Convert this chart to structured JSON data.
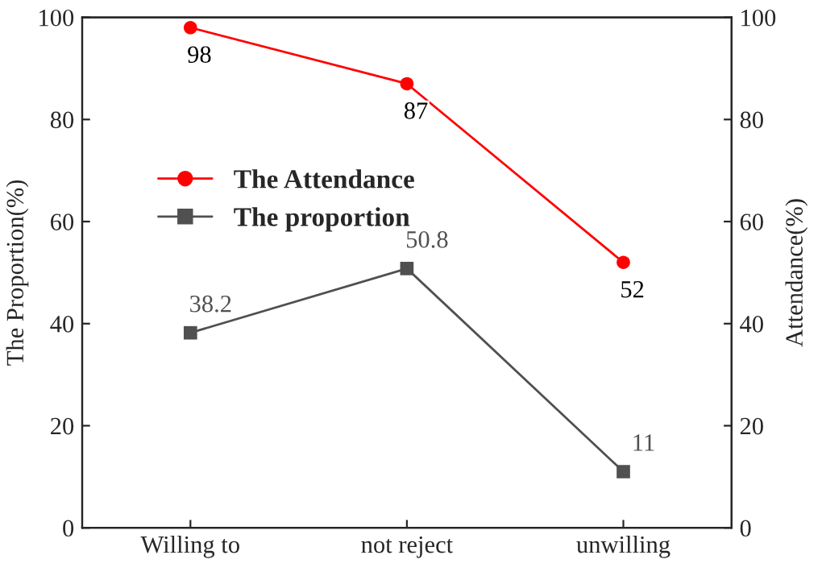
{
  "chart_data": {
    "type": "line",
    "ylabel": "The Proportion(%)",
    "y2label": "Attendance(%)",
    "categories": [
      "Willing to",
      "not reject",
      "unwilling"
    ],
    "series": [
      {
        "name": "The Attendance",
        "color": "#ff0000",
        "values": [
          98,
          87,
          52
        ],
        "axis": "y2",
        "marker": "circle"
      },
      {
        "name": "The proportion",
        "color": "#505050",
        "values": [
          38.2,
          50.8,
          11
        ],
        "axis": "y",
        "marker": "square"
      }
    ],
    "ylim": [
      0,
      100
    ],
    "yticks": [
      0,
      20,
      40,
      60,
      80,
      100
    ],
    "y2lim": [
      0,
      100
    ],
    "y2ticks": [
      0,
      20,
      40,
      60,
      80,
      100
    ],
    "data_labels": true,
    "legend": "top left",
    "grid": false
  }
}
